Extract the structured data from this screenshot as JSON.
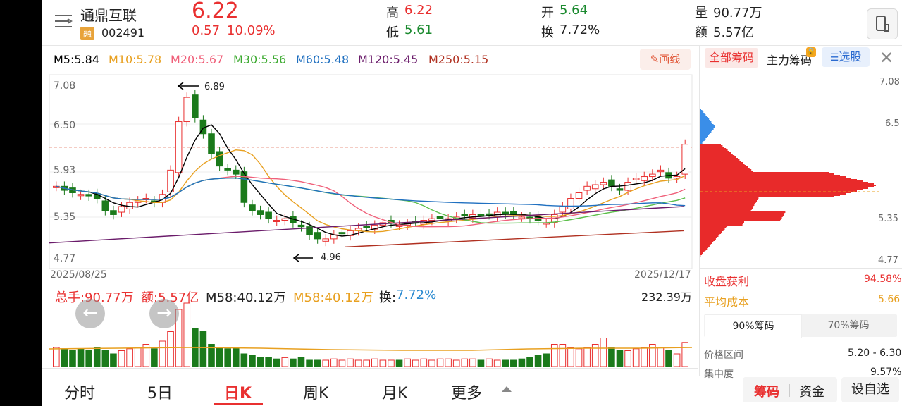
{
  "header": {
    "stock_name": "通鼎互联",
    "badge": "融",
    "stock_code": "002491",
    "price": "6.22",
    "change": "0.57",
    "change_pct": "10.09%",
    "high_label": "高",
    "high": "6.22",
    "low_label": "低",
    "low": "5.61",
    "open_label": "开",
    "open": "5.64",
    "turnover_label": "换",
    "turnover": "7.72%",
    "volume_label": "量",
    "volume": "90.77万",
    "amount_label": "额",
    "amount": "5.57亿"
  },
  "ma": {
    "m5": "M5:5.84",
    "m10": "M10:5.78",
    "m20": "M20:5.67",
    "m30": "M30:5.56",
    "m60": "M60:5.48",
    "m120": "M120:5.45",
    "m250": "M250:5.15",
    "draw_button": "画线"
  },
  "main_chart": {
    "y_ticks": [
      "7.08",
      "6.50",
      "5.93",
      "5.35",
      "4.77"
    ],
    "start_date": "2025/08/25",
    "end_date": "2025/12/17",
    "high_mark": "6.89",
    "low_mark": "4.96"
  },
  "volume_panel": {
    "total": "总手:90.77万",
    "amount": "额:5.57亿",
    "m5": "M58:40.12万",
    "m10": "M58:40.12万",
    "turnover_label": "换:",
    "turnover": "7.72%",
    "max": "232.39万"
  },
  "chips": {
    "tab_all": "全部筹码",
    "tab_main": "主力筹码",
    "select_button": "选股",
    "y_ticks": [
      "7.08",
      "6.5",
      "5.35",
      "4.77"
    ],
    "profit_label": "收盘获利",
    "profit": "94.58%",
    "avg_cost_label": "平均成本",
    "avg_cost": "5.66",
    "seg_90": "90%筹码",
    "seg_70": "70%筹码",
    "range_label": "价格区间",
    "range": "5.20 - 6.30",
    "concentration_label": "集中度",
    "concentration": "9.57%"
  },
  "bottom_tabs": [
    "分时",
    "5日",
    "日K",
    "周K",
    "月K",
    "更多"
  ],
  "bottom_right": {
    "chips": "筹码",
    "funds": "资金",
    "settings": "设自选"
  },
  "colors": {
    "up": "#e93030",
    "down": "#1b7a1b",
    "ma5": "#000000",
    "ma10": "#e8a020",
    "ma20": "#f0607a",
    "ma30": "#5cbf4a",
    "ma60": "#2070c0",
    "ma120": "#6a1b6a",
    "ma250": "#b03020"
  }
}
